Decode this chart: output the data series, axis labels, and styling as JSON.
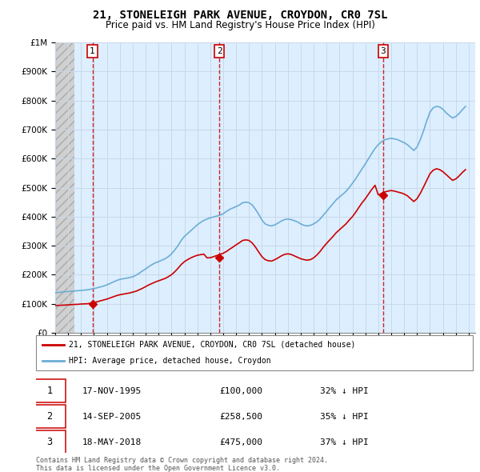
{
  "title": "21, STONELEIGH PARK AVENUE, CROYDON, CR0 7SL",
  "subtitle": "Price paid vs. HM Land Registry's House Price Index (HPI)",
  "legend_line1": "21, STONELEIGH PARK AVENUE, CROYDON, CR0 7SL (detached house)",
  "legend_line2": "HPI: Average price, detached house, Croydon",
  "footer1": "Contains HM Land Registry data © Crown copyright and database right 2024.",
  "footer2": "This data is licensed under the Open Government Licence v3.0.",
  "transactions": [
    {
      "num": 1,
      "date": "17-NOV-1995",
      "price": 100000,
      "year": 1995.88,
      "hpi_pct": "32% ↓ HPI"
    },
    {
      "num": 2,
      "date": "14-SEP-2005",
      "price": 258500,
      "year": 2005.71,
      "hpi_pct": "35% ↓ HPI"
    },
    {
      "num": 3,
      "date": "18-MAY-2018",
      "price": 475000,
      "year": 2018.38,
      "hpi_pct": "37% ↓ HPI"
    }
  ],
  "hpi_color": "#6baed6",
  "price_color": "#cc0000",
  "vline_color": "#cc0000",
  "grid_color": "#c8d8e8",
  "bg_color": "#ddeeff",
  "ylim": [
    0,
    1000000
  ],
  "xlim_start": 1993.0,
  "xlim_end": 2025.5,
  "hpi_years": [
    1993.0,
    1993.25,
    1993.5,
    1993.75,
    1994.0,
    1994.25,
    1994.5,
    1994.75,
    1995.0,
    1995.25,
    1995.5,
    1995.75,
    1996.0,
    1996.25,
    1996.5,
    1996.75,
    1997.0,
    1997.25,
    1997.5,
    1997.75,
    1998.0,
    1998.25,
    1998.5,
    1998.75,
    1999.0,
    1999.25,
    1999.5,
    1999.75,
    2000.0,
    2000.25,
    2000.5,
    2000.75,
    2001.0,
    2001.25,
    2001.5,
    2001.75,
    2002.0,
    2002.25,
    2002.5,
    2002.75,
    2003.0,
    2003.25,
    2003.5,
    2003.75,
    2004.0,
    2004.25,
    2004.5,
    2004.75,
    2005.0,
    2005.25,
    2005.5,
    2005.75,
    2006.0,
    2006.25,
    2006.5,
    2006.75,
    2007.0,
    2007.25,
    2007.5,
    2007.75,
    2008.0,
    2008.25,
    2008.5,
    2008.75,
    2009.0,
    2009.25,
    2009.5,
    2009.75,
    2010.0,
    2010.25,
    2010.5,
    2010.75,
    2011.0,
    2011.25,
    2011.5,
    2011.75,
    2012.0,
    2012.25,
    2012.5,
    2012.75,
    2013.0,
    2013.25,
    2013.5,
    2013.75,
    2014.0,
    2014.25,
    2014.5,
    2014.75,
    2015.0,
    2015.25,
    2015.5,
    2015.75,
    2016.0,
    2016.25,
    2016.5,
    2016.75,
    2017.0,
    2017.25,
    2017.5,
    2017.75,
    2018.0,
    2018.25,
    2018.5,
    2018.75,
    2019.0,
    2019.25,
    2019.5,
    2019.75,
    2020.0,
    2020.25,
    2020.5,
    2020.75,
    2021.0,
    2021.25,
    2021.5,
    2021.75,
    2022.0,
    2022.25,
    2022.5,
    2022.75,
    2023.0,
    2023.25,
    2023.5,
    2023.75,
    2024.0,
    2024.25,
    2024.5,
    2024.75
  ],
  "hpi_values": [
    138000,
    139000,
    140000,
    141000,
    142000,
    143000,
    144000,
    145000,
    146000,
    147000,
    148000,
    150000,
    152000,
    155000,
    158000,
    161000,
    165000,
    170000,
    175000,
    180000,
    184000,
    186000,
    188000,
    190000,
    193000,
    198000,
    205000,
    213000,
    220000,
    228000,
    235000,
    241000,
    245000,
    250000,
    255000,
    262000,
    272000,
    285000,
    300000,
    318000,
    332000,
    342000,
    352000,
    362000,
    372000,
    380000,
    387000,
    392000,
    396000,
    399000,
    402000,
    405000,
    410000,
    418000,
    425000,
    430000,
    435000,
    440000,
    448000,
    450000,
    448000,
    440000,
    425000,
    408000,
    388000,
    375000,
    370000,
    368000,
    372000,
    378000,
    385000,
    390000,
    392000,
    390000,
    386000,
    382000,
    375000,
    370000,
    368000,
    370000,
    375000,
    382000,
    392000,
    405000,
    418000,
    432000,
    445000,
    458000,
    468000,
    477000,
    487000,
    500000,
    515000,
    530000,
    548000,
    565000,
    582000,
    600000,
    618000,
    635000,
    648000,
    658000,
    665000,
    668000,
    670000,
    668000,
    665000,
    660000,
    655000,
    648000,
    638000,
    628000,
    640000,
    665000,
    695000,
    730000,
    760000,
    775000,
    780000,
    778000,
    770000,
    758000,
    748000,
    740000,
    745000,
    755000,
    768000,
    780000
  ],
  "price_years": [
    1993.0,
    1993.25,
    1993.5,
    1993.75,
    1994.0,
    1994.25,
    1994.5,
    1994.75,
    1995.0,
    1995.25,
    1995.5,
    1995.75,
    1996.0,
    1996.25,
    1996.5,
    1996.75,
    1997.0,
    1997.25,
    1997.5,
    1997.75,
    1998.0,
    1998.25,
    1998.5,
    1998.75,
    1999.0,
    1999.25,
    1999.5,
    1999.75,
    2000.0,
    2000.25,
    2000.5,
    2000.75,
    2001.0,
    2001.25,
    2001.5,
    2001.75,
    2002.0,
    2002.25,
    2002.5,
    2002.75,
    2003.0,
    2003.25,
    2003.5,
    2003.75,
    2004.0,
    2004.25,
    2004.5,
    2004.75,
    2005.0,
    2005.25,
    2005.5,
    2005.75,
    2006.0,
    2006.25,
    2006.5,
    2006.75,
    2007.0,
    2007.25,
    2007.5,
    2007.75,
    2008.0,
    2008.25,
    2008.5,
    2008.75,
    2009.0,
    2009.25,
    2009.5,
    2009.75,
    2010.0,
    2010.25,
    2010.5,
    2010.75,
    2011.0,
    2011.25,
    2011.5,
    2011.75,
    2012.0,
    2012.25,
    2012.5,
    2012.75,
    2013.0,
    2013.25,
    2013.5,
    2013.75,
    2014.0,
    2014.25,
    2014.5,
    2014.75,
    2015.0,
    2015.25,
    2015.5,
    2015.75,
    2016.0,
    2016.25,
    2016.5,
    2016.75,
    2017.0,
    2017.25,
    2017.5,
    2017.75,
    2018.0,
    2018.25,
    2018.5,
    2018.75,
    2019.0,
    2019.25,
    2019.5,
    2019.75,
    2020.0,
    2020.25,
    2020.5,
    2020.75,
    2021.0,
    2021.25,
    2021.5,
    2021.75,
    2022.0,
    2022.25,
    2022.5,
    2022.75,
    2023.0,
    2023.25,
    2023.5,
    2023.75,
    2024.0,
    2024.25,
    2024.5,
    2024.75
  ],
  "price_values": [
    94000,
    94500,
    95000,
    95500,
    96000,
    97000,
    97500,
    98000,
    99000,
    99500,
    100000,
    102000,
    104000,
    107000,
    110000,
    113000,
    116000,
    120000,
    124000,
    128000,
    131000,
    133000,
    135000,
    137000,
    140000,
    143000,
    148000,
    153000,
    159000,
    165000,
    170000,
    175000,
    179000,
    183000,
    187000,
    193000,
    200000,
    210000,
    222000,
    235000,
    245000,
    252000,
    258000,
    263000,
    267000,
    269000,
    271000,
    258000,
    258500,
    262000,
    266000,
    270000,
    274000,
    280000,
    288000,
    295000,
    303000,
    310000,
    318000,
    320000,
    318000,
    309000,
    295000,
    278000,
    262000,
    252000,
    248000,
    247000,
    252000,
    258000,
    265000,
    270000,
    272000,
    270000,
    265000,
    260000,
    255000,
    252000,
    250000,
    252000,
    258000,
    268000,
    280000,
    295000,
    308000,
    320000,
    332000,
    345000,
    355000,
    365000,
    375000,
    388000,
    400000,
    415000,
    432000,
    448000,
    462000,
    478000,
    494000,
    508000,
    475000,
    480000,
    485000,
    488000,
    490000,
    488000,
    485000,
    482000,
    478000,
    472000,
    462000,
    452000,
    462000,
    480000,
    502000,
    525000,
    548000,
    560000,
    565000,
    562000,
    555000,
    545000,
    535000,
    525000,
    530000,
    540000,
    552000,
    562000
  ]
}
